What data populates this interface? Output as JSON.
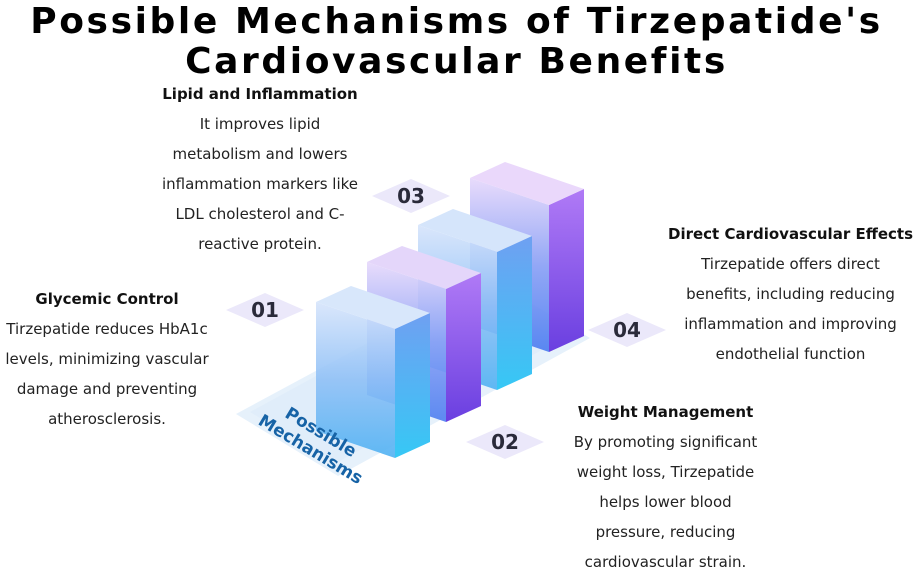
{
  "title_line1": "Possible Mechanisms of Tirzepatide's",
  "title_line2": "Cardiovascular Benefits",
  "center_line1": "Possible",
  "center_line2": "Mechanisms",
  "items": [
    {
      "number": "01",
      "heading": "Glycemic Control",
      "body": [
        "Tirzepatide reduces HbA1c",
        "levels, minimizing vascular",
        "damage and preventing",
        "atherosclerosis."
      ]
    },
    {
      "number": "02",
      "heading": "Weight Management",
      "body": [
        "By promoting significant",
        "weight loss, Tirzepatide",
        "helps lower blood",
        "pressure, reducing",
        "cardiovascular strain."
      ]
    },
    {
      "number": "03",
      "heading": "Lipid and Inflammation",
      "body": [
        "It improves lipid",
        "metabolism and lowers",
        "inflammation markers like",
        "LDL cholesterol and C-",
        "reactive protein."
      ]
    },
    {
      "number": "04",
      "heading": "Direct Cardiovascular Effects",
      "body": [
        "Tirzepatide offers direct",
        "benefits, including reducing",
        "inflammation and improving",
        "endothelial function"
      ]
    }
  ],
  "colors": {
    "platform": "#e6f1fb",
    "diamond": "#ebe8fa",
    "bar_front_top": "#d9c8f5",
    "bar_front_bottom": "#5a8cf0",
    "bar_side_top": "#9a6cf0",
    "bar_side_bottom": "#4fb8f5"
  }
}
